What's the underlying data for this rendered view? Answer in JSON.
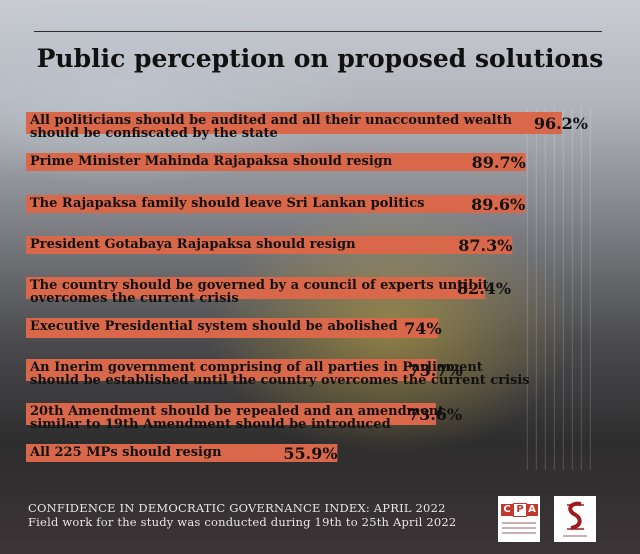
{
  "title": "Public perception on proposed solutions",
  "footer": {
    "line1": "CONFIDENCE IN DEMOCRATIC GOVERNANCE INDEX: APRIL 2022",
    "line2": "Field work for the study was conducted during 19th to 25th April 2022"
  },
  "logos": {
    "cpa_text": "CPA",
    "cpa_color": "#c0392b",
    "ss_color": "#9b1c1c"
  },
  "colors": {
    "bar": "#d9684b",
    "text": "#111111"
  },
  "chart_data": {
    "type": "bar",
    "orientation": "horizontal",
    "categories": [
      [
        "All politicians should be audited and all their unaccounted wealth",
        "should be confiscated by the state"
      ],
      [
        "Prime Minister Mahinda Rajapaksa should resign"
      ],
      [
        "The Rajapaksa family should leave Sri Lankan politics"
      ],
      [
        "President Gotabaya Rajapaksa should resign"
      ],
      [
        "The country should be governed by a council of experts until it",
        "overcomes the current crisis"
      ],
      [
        "Executive Presidential system should be abolished"
      ],
      [
        "An Inerim government comprising of all parties in Parliament",
        "should be established until the country overcomes the current crisis"
      ],
      [
        "20th Amendment should be repealed and an amendment",
        "similar to 19th Amendment should be introduced"
      ],
      [
        "All 225 MPs should resign"
      ]
    ],
    "values": [
      96.2,
      89.7,
      89.6,
      87.3,
      82.4,
      74,
      73.7,
      73.6,
      55.9
    ],
    "value_labels": [
      "96.2%",
      "89.7%",
      "89.6%",
      "87.3%",
      "82.4%",
      "74%",
      "73.7%",
      "73.6%",
      "55.9%"
    ],
    "xlim": [
      0,
      100
    ],
    "grid": true
  }
}
